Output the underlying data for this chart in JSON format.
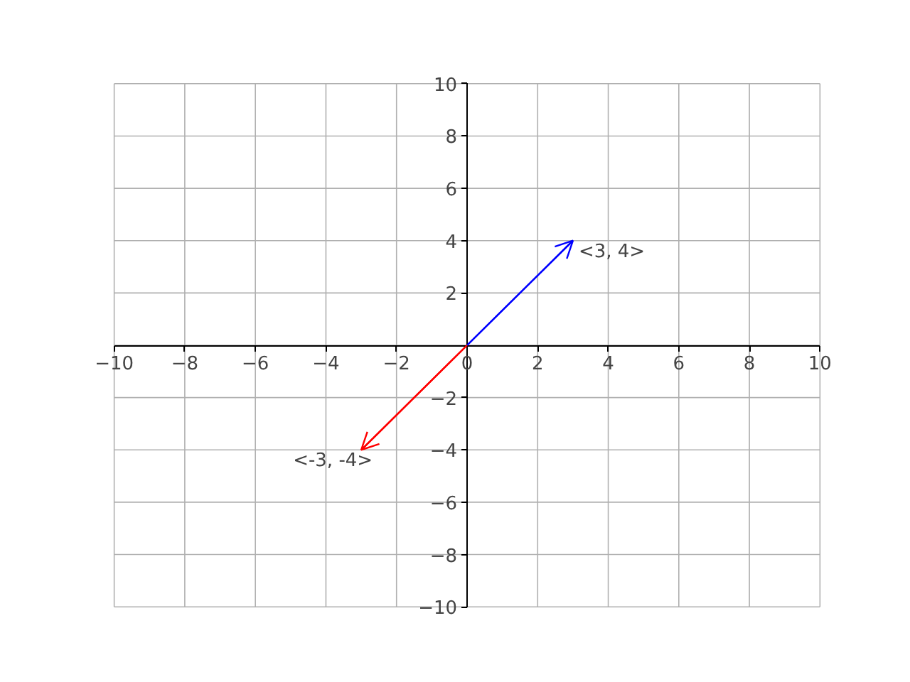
{
  "chart_data": {
    "type": "line",
    "series": [
      {
        "name": "<3, 4>",
        "color": "#0000ff",
        "x": [
          0,
          3
        ],
        "values": [
          0,
          4
        ]
      },
      {
        "name": "<-3, -4>",
        "color": "#ff0000",
        "x": [
          0,
          -3
        ],
        "values": [
          0,
          -4
        ]
      }
    ],
    "xlim": [
      -10,
      10
    ],
    "ylim": [
      -10,
      10
    ],
    "xticks": [
      -10,
      -8,
      -6,
      -4,
      -2,
      0,
      2,
      4,
      6,
      8,
      10
    ],
    "yticks": [
      -10,
      -8,
      -6,
      -4,
      -2,
      {
        "value": 0,
        "label": null
      },
      2,
      4,
      6,
      8,
      10
    ],
    "grid": true,
    "marker": "none",
    "line_style": "solid"
  }
}
